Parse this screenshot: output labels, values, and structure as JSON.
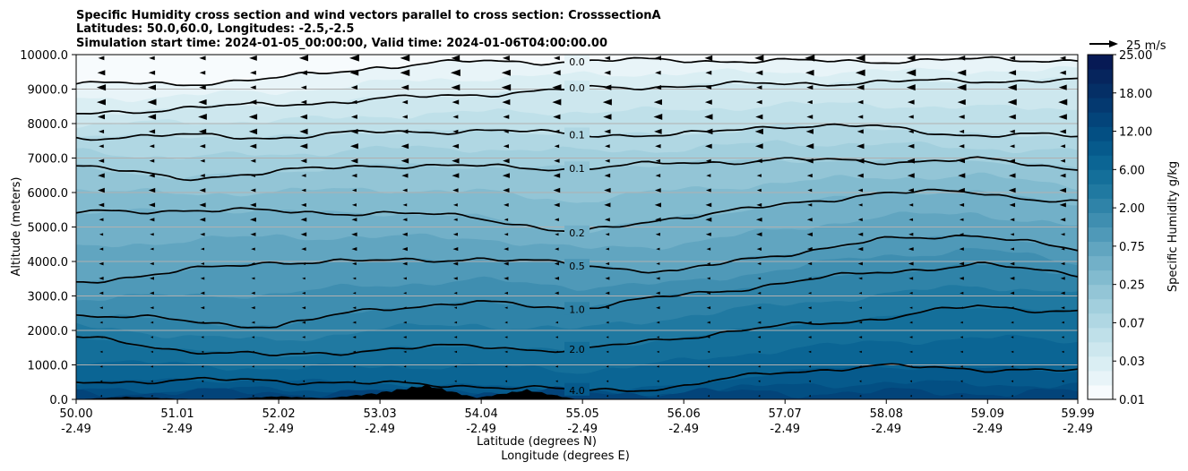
{
  "chart_data": {
    "type": "contourf",
    "title": [
      "Specific Humidity cross section and wind vectors parallel to cross section: CrosssectionA",
      "Latitudes: 50.0,60.0, Longitudes: -2.5,-2.5",
      "Simulation start time: 2024-01-05_00:00:00, Valid time: 2024-01-06T04:00:00.00"
    ],
    "xlabel_lat": "Latitude (degrees N)",
    "xlabel_lon": "Longitude (degrees E)",
    "ylabel": "Altitude (meters)",
    "x_ticks_lat": [
      "50.00",
      "51.01",
      "52.02",
      "53.03",
      "54.04",
      "55.05",
      "56.06",
      "57.07",
      "58.08",
      "59.09",
      "59.99"
    ],
    "x_ticks_lon": [
      "-2.49",
      "-2.49",
      "-2.49",
      "-2.49",
      "-2.49",
      "-2.49",
      "-2.49",
      "-2.49",
      "-2.49",
      "-2.49",
      "-2.49"
    ],
    "x_tick_values": [
      50.0,
      51.01,
      52.02,
      53.03,
      54.04,
      55.05,
      56.06,
      57.07,
      58.08,
      59.09,
      59.99
    ],
    "xlim": [
      50.0,
      59.99
    ],
    "y_ticks": [
      "0.0",
      "1000.0",
      "2000.0",
      "3000.0",
      "4000.0",
      "5000.0",
      "6000.0",
      "7000.0",
      "8000.0",
      "9000.0",
      "10000.0"
    ],
    "y_tick_values": [
      0,
      1000,
      2000,
      3000,
      4000,
      5000,
      6000,
      7000,
      8000,
      9000,
      10000
    ],
    "ylim": [
      0,
      10000
    ],
    "grid": "horizontal",
    "colorbar": {
      "label": "Specific Humidity g/kg",
      "levels": [
        0.01,
        0.015,
        0.02,
        0.03,
        0.05,
        0.07,
        0.1,
        0.15,
        0.25,
        0.35,
        0.5,
        0.75,
        1.0,
        1.5,
        2.0,
        3.0,
        4.0,
        6.0,
        8.0,
        12.0,
        15.0,
        18.0,
        21.0,
        25.0
      ],
      "tick_labels": [
        "0.01",
        "0.03",
        "0.07",
        "0.25",
        "0.75",
        "2.00",
        "6.00",
        "12.00",
        "18.00",
        "25.00"
      ],
      "colors": [
        "#f7fbfd",
        "#e8f4f8",
        "#daeef3",
        "#cde7ee",
        "#bfe0e9",
        "#b0d7e3",
        "#a2cfdd",
        "#93c5d6",
        "#82bbcf",
        "#72b0c8",
        "#61a5c0",
        "#4f99b8",
        "#3f8eb0",
        "#2f83a8",
        "#2079a1",
        "#146f9a",
        "#0b6594",
        "#065a8c",
        "#034f83",
        "#03447a",
        "#043970",
        "#052f66",
        "#06255d",
        "#071a55"
      ]
    },
    "wind_reference_label": "25 m/s",
    "contour_lines": [
      {
        "label": "0.0",
        "heights": [
          9150,
          9150,
          9300,
          9650,
          9800,
          9800,
          9850,
          9800,
          9820,
          9850,
          9850
        ]
      },
      {
        "label": "0.0",
        "heights": [
          8250,
          8450,
          8550,
          8700,
          8850,
          9000,
          9100,
          9150,
          9200,
          9250,
          9250
        ]
      },
      {
        "label": "0.1",
        "heights": [
          7600,
          7650,
          7600,
          7750,
          7800,
          7700,
          7650,
          7950,
          7900,
          7650,
          7650
        ]
      },
      {
        "label": "0.1",
        "heights": [
          6800,
          6400,
          6600,
          6800,
          6750,
          6700,
          6850,
          6950,
          6900,
          6950,
          6700
        ]
      },
      {
        "label": "0.2",
        "heights": [
          5400,
          5500,
          5450,
          5400,
          5300,
          4800,
          5300,
          5600,
          6000,
          6000,
          5700
        ]
      },
      {
        "label": "0.5",
        "heights": [
          3400,
          3700,
          4000,
          4000,
          4100,
          3900,
          3700,
          4200,
          4600,
          4800,
          4300
        ]
      },
      {
        "label": "1.0",
        "heights": [
          2450,
          2300,
          2100,
          2650,
          2800,
          2650,
          3000,
          3350,
          3700,
          3900,
          3650
        ]
      },
      {
        "label": "2.0",
        "heights": [
          1800,
          1450,
          1250,
          1450,
          1550,
          1400,
          1800,
          2100,
          2350,
          2700,
          2550
        ]
      },
      {
        "label": "4.0",
        "heights": [
          500,
          550,
          550,
          450,
          400,
          250,
          350,
          800,
          950,
          900,
          800
        ]
      }
    ],
    "terrain_heights": [
      0,
      80,
      20,
      0,
      100,
      30,
      200,
      450,
      50,
      300,
      0,
      0,
      0,
      0,
      0,
      0,
      0,
      0,
      0,
      0,
      0
    ]
  }
}
